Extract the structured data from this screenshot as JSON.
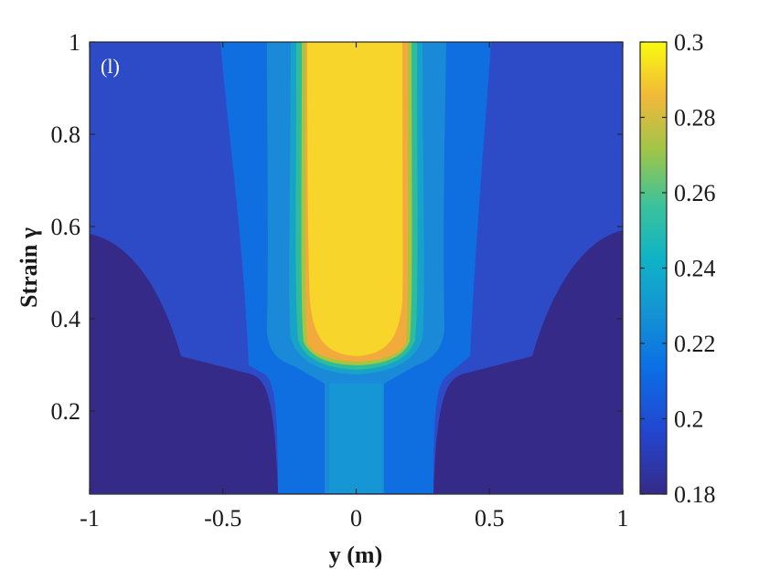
{
  "chart_data": {
    "type": "heatmap",
    "title": "",
    "panel_label": "(l)",
    "xlabel": "y (m)",
    "ylabel": "Strain γ",
    "xlim": [
      -1,
      1
    ],
    "ylim": [
      0.02,
      1
    ],
    "x_ticks": [
      -1,
      -0.5,
      0,
      0.5,
      1
    ],
    "x_tick_labels": [
      "-1",
      "-0.5",
      "0",
      "0.5",
      "1"
    ],
    "y_ticks": [
      0.2,
      0.4,
      0.6,
      0.8,
      1
    ],
    "y_tick_labels": [
      "0.2",
      "0.4",
      "0.6",
      "0.8",
      "1"
    ],
    "colorbar": {
      "colormap": "parula",
      "range": [
        0.18,
        0.3
      ],
      "ticks": [
        0.18,
        0.2,
        0.22,
        0.24,
        0.26,
        0.28,
        0.3
      ],
      "tick_labels": [
        "0.18",
        "0.2",
        "0.22",
        "0.24",
        "0.26",
        "0.28",
        "0.3"
      ]
    },
    "approx_field": {
      "description_levels": "estimated contour levels",
      "regions": [
        {
          "level": 0.18,
          "where": "outer lower corners |y| > 0.7 for strain < 0.55, and |y| > 0.3 for strain < 0.28",
          "color": "#352a87"
        },
        {
          "level": 0.19,
          "where": "background",
          "color": "#2e4bc7"
        },
        {
          "level": 0.2,
          "where": "band 0.18 < |y| < 0.5",
          "color": "#0f6fe0"
        },
        {
          "level": 0.21,
          "where": "band 0.15 < |y| < 0.3",
          "color": "#1a8ad8"
        },
        {
          "level": 0.3,
          "where": "core |y| < 0.18 for strain > 0.3",
          "color": "#f9d62a"
        }
      ]
    },
    "grid": false
  }
}
